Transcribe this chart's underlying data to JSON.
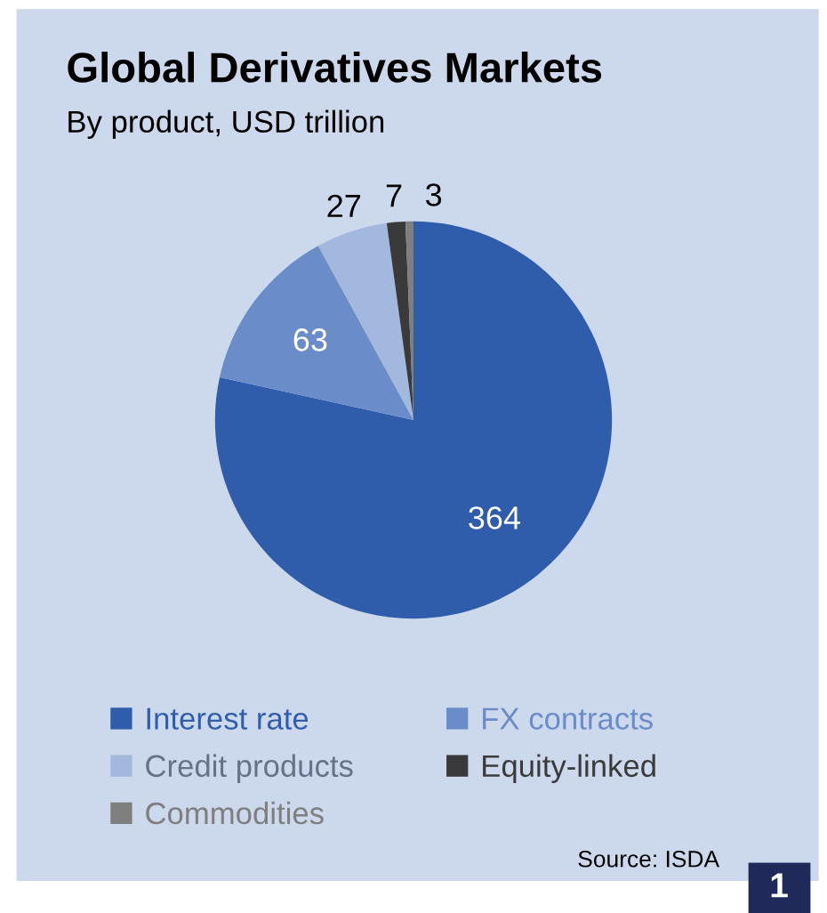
{
  "chart_data": {
    "type": "pie",
    "title": "Global Derivatives Markets",
    "subtitle": "By product, USD trillion",
    "categories": [
      "Interest rate",
      "FX contracts",
      "Credit products",
      "Equity-linked",
      "Commodities"
    ],
    "values": [
      364,
      63,
      27,
      7,
      3
    ],
    "colors": [
      "#2f5dab",
      "#6a8cc8",
      "#a3b8dd",
      "#3a3a3a",
      "#7f7f7f"
    ],
    "data_labels": true,
    "legend": "bottom",
    "annotations": [
      "Source: ISDA",
      "1"
    ]
  }
}
